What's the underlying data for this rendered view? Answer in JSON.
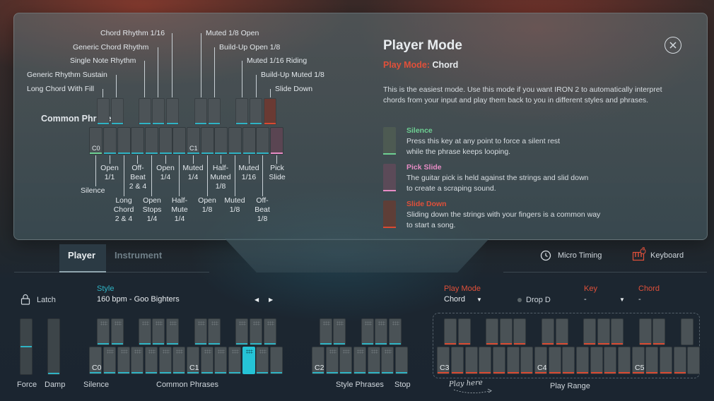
{
  "overlay": {
    "title": "Player Mode",
    "mode_label": "Play Mode:",
    "mode_value": "Chord",
    "description": "This is the easiest mode. Use this mode if you want IRON 2 to automatically interpret chords from your input and play them back to you in different styles and phrases.",
    "common_phrases_label": "Common Phrases",
    "upper_labels": {
      "long_chord_with_fill": "Long Chord With Fill",
      "generic_rhythm_sustain": "Generic Rhythm Sustain",
      "single_note_rhythm": "Single Note Rhythm",
      "generic_chord_rhythm": "Generic Chord Rhythm",
      "chord_rhythm_1_16": "Chord Rhythm 1/16",
      "muted_1_8_open": "Muted 1/8 Open",
      "build_up_open_1_8": "Build-Up Open 1/8",
      "muted_1_16_riding": "Muted 1/16 Riding",
      "build_up_muted_1_8": "Build-Up Muted 1/8",
      "slide_down": "Slide Down"
    },
    "key_c0": "C0",
    "key_c1": "C1",
    "lower_labels": {
      "silence": "Silence",
      "open_1_1": "Open\n1/1",
      "long_chord_2_4": "Long\nChord\n2 & 4",
      "off_beat_2_4": "Off-\nBeat\n2 & 4",
      "open_stops_1_4": "Open\nStops\n1/4",
      "open_1_4": "Open\n1/4",
      "half_mute_1_4": "Half-\nMute\n1/4",
      "muted_1_4": "Muted\n1/4",
      "open_1_8": "Open\n1/8",
      "half_muted_1_8": "Half-\nMuted\n1/8",
      "muted_1_8": "Muted\n1/8",
      "muted_1_16": "Muted\n1/16",
      "off_beat_1_8": "Off-\nBeat\n1/8",
      "pick_slide": "Pick\nSlide"
    },
    "legend": [
      {
        "title": "Silence",
        "color": "#6ed093",
        "desc1": "Press this key at any point to force a silent rest",
        "desc2": "while the phrase keeps looping."
      },
      {
        "title": "Pick Slide",
        "color": "#e78cc5",
        "desc1": "The guitar pick is held against the strings and slid down",
        "desc2": "to create a scraping sound."
      },
      {
        "title": "Slide Down",
        "color": "#d84a32",
        "desc1": "Sliding down the strings with your fingers is a common way",
        "desc2": "to start a song."
      }
    ],
    "close_icon": "close-icon"
  },
  "tabs": {
    "player": "Player",
    "instrument": "Instrument"
  },
  "toolbar": {
    "micro_timing": "Micro Timing",
    "keyboard": "Keyboard",
    "keyboard_badge": "?"
  },
  "player": {
    "latch": "Latch",
    "style_label": "Style",
    "style_value": "160 bpm - Goo Bighters",
    "force": "Force",
    "damp": "Damp",
    "silence": "Silence",
    "common_phrases": "Common Phrases",
    "style_phrases": "Style Phrases",
    "stop": "Stop",
    "c0": "C0",
    "c1": "C1",
    "c2": "C2"
  },
  "play": {
    "play_mode_label": "Play Mode",
    "play_mode_value": "Chord",
    "drop_d": "Drop D",
    "key_label": "Key",
    "key_value": "-",
    "chord_label": "Chord",
    "chord_value": "-",
    "c3": "C3",
    "c4": "C4",
    "c5": "C5",
    "play_here": "Play here",
    "play_range": "Play Range"
  },
  "colors": {
    "accent_teal": "#2fb3c4",
    "accent_red": "#e0503a",
    "pink": "#e78cc5",
    "green": "#6ed093"
  }
}
